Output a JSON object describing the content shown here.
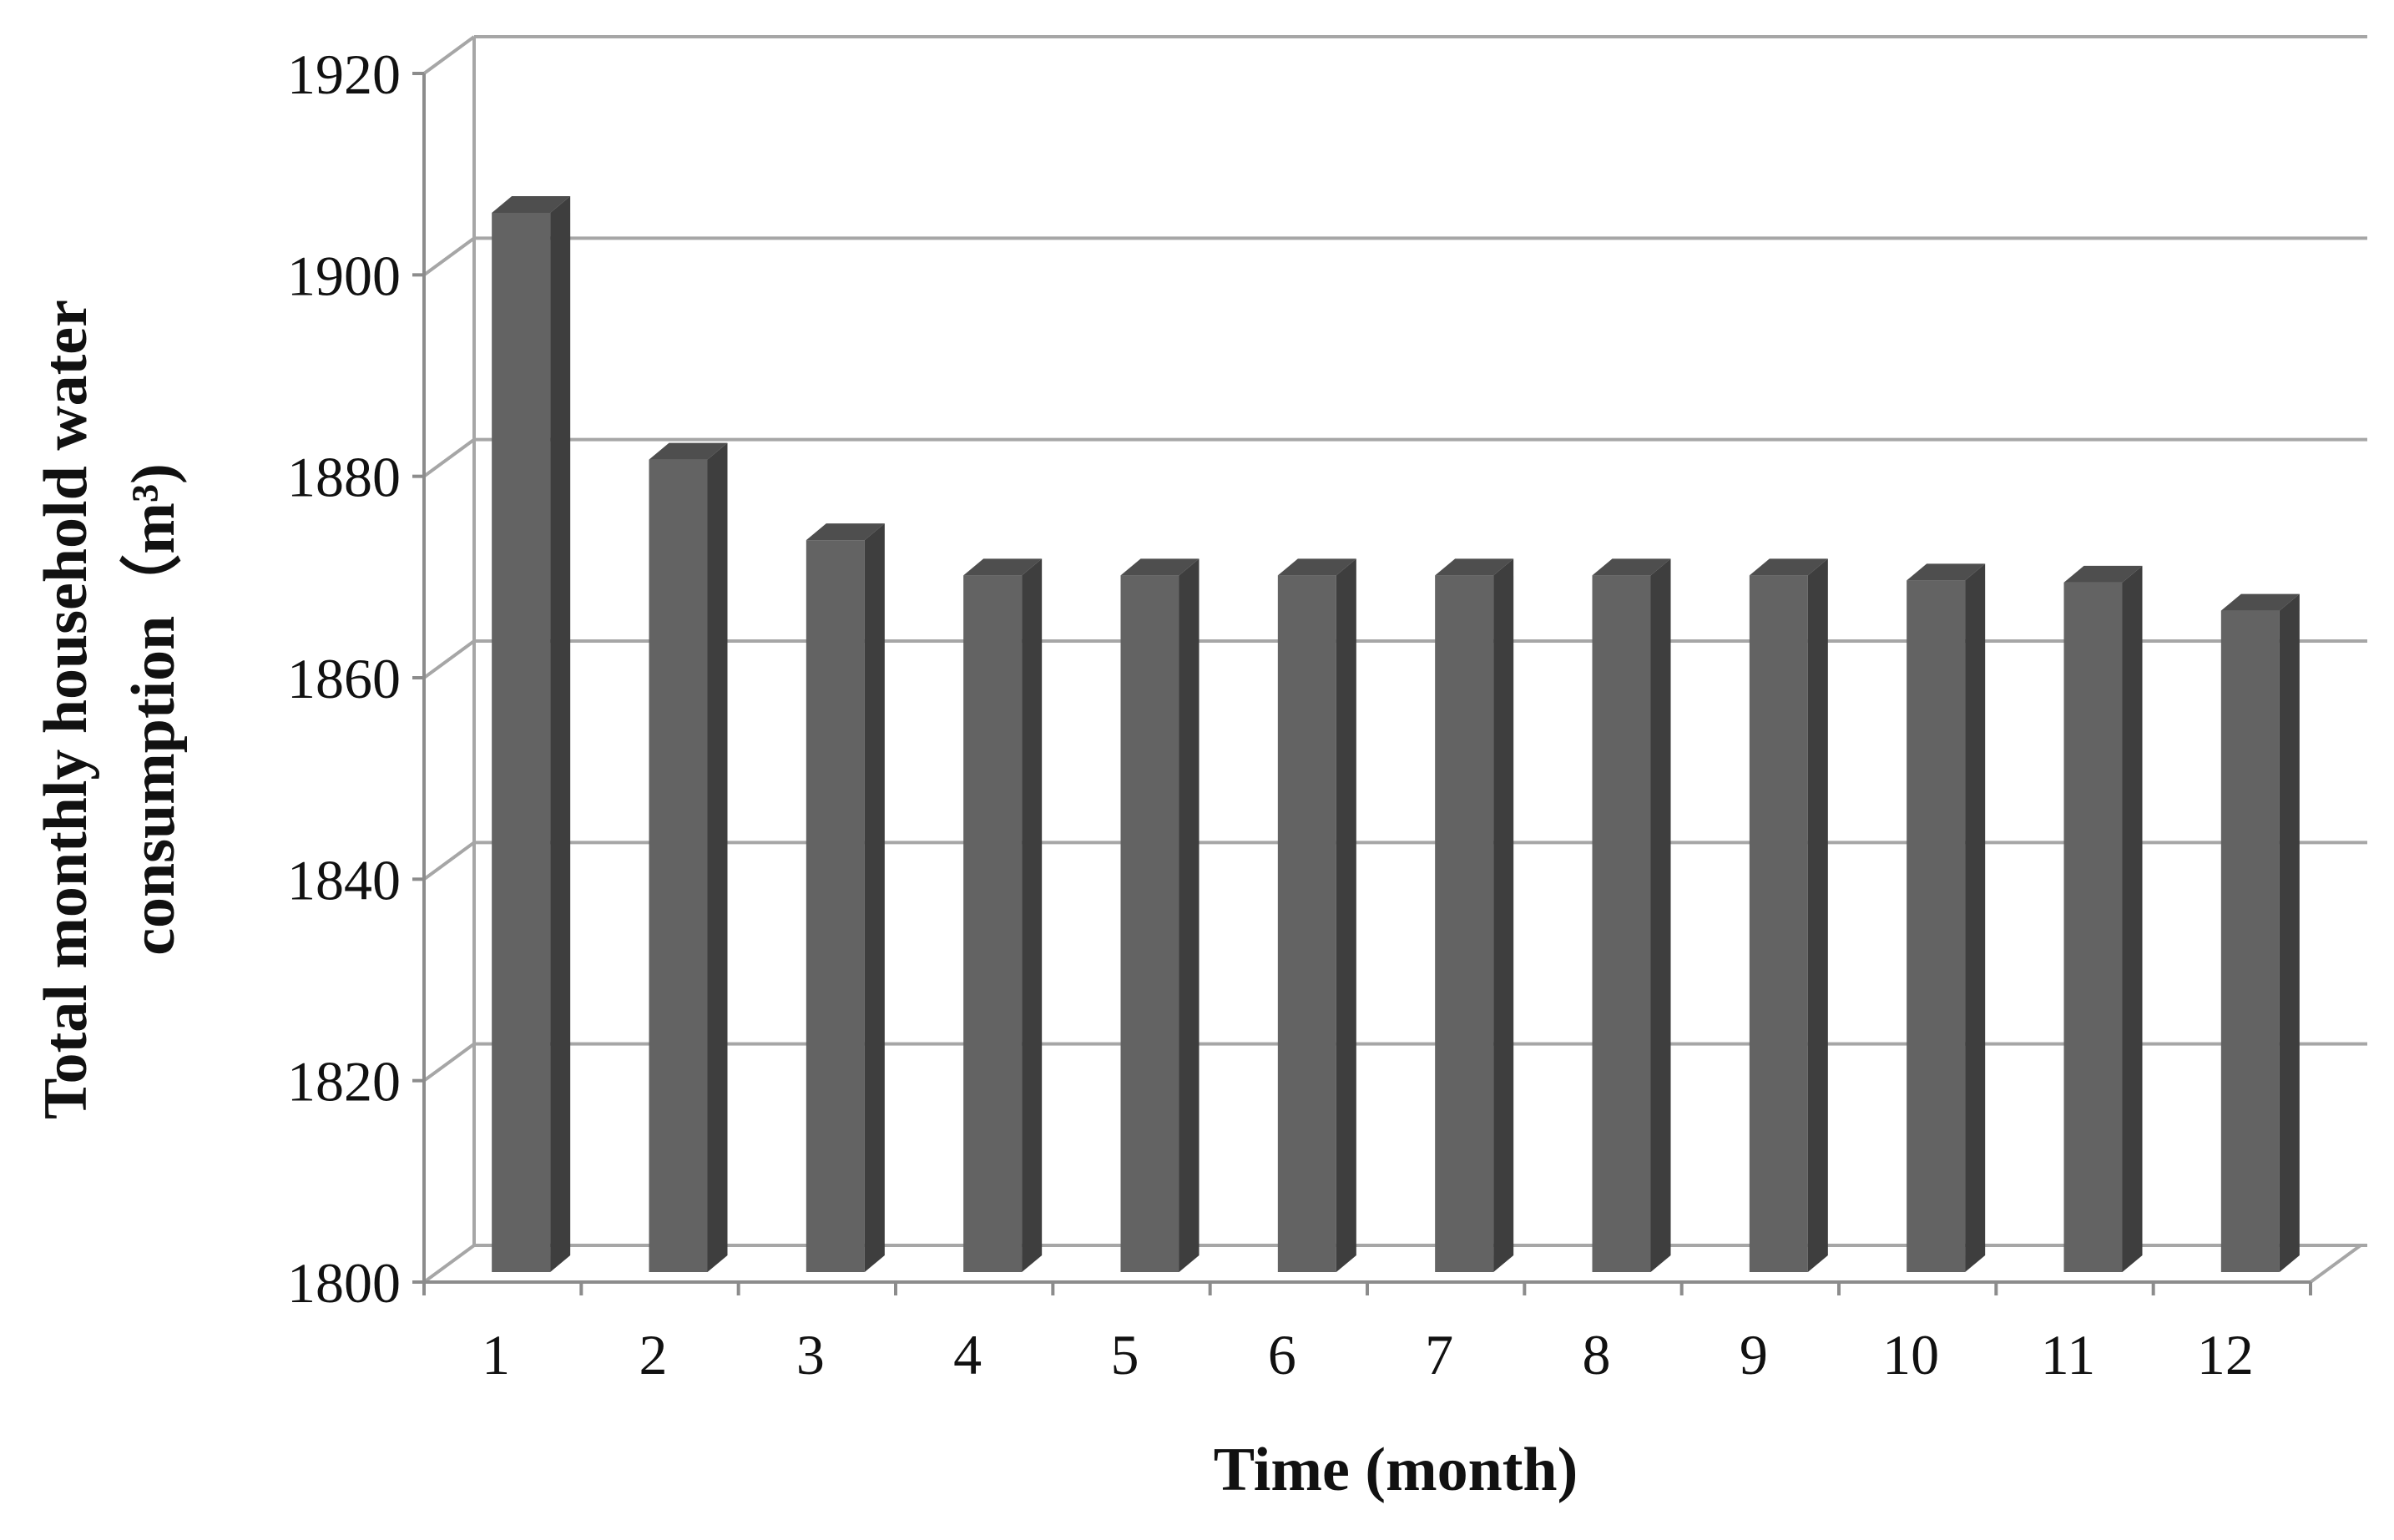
{
  "chart_data": {
    "type": "bar",
    "style": "3d-column",
    "categories": [
      "1",
      "2",
      "3",
      "4",
      "5",
      "6",
      "7",
      "8",
      "9",
      "10",
      "11",
      "12"
    ],
    "series": [
      {
        "values": [
          1905.5,
          1881,
          1873,
          1869.5,
          1869.5,
          1869.5,
          1869.5,
          1869.5,
          1869.5,
          1869,
          1868.8,
          1866
        ]
      }
    ],
    "ylim": [
      1800,
      1920
    ],
    "yticks": [
      "1800",
      "1820",
      "1840",
      "1860",
      "1880",
      "1900",
      "1920"
    ],
    "ylabel_line1": "Total monthly household water",
    "ylabel_line2": "consumption（m³)",
    "xlabel": "Time (month)",
    "grid": true,
    "legend": "none",
    "colors": {
      "bar_front": "#636363",
      "bar_side": "#3e3e3e",
      "bar_top": "#4e4e4e",
      "grid": "#a6a6a6",
      "axis": "#8c8c8c"
    }
  }
}
